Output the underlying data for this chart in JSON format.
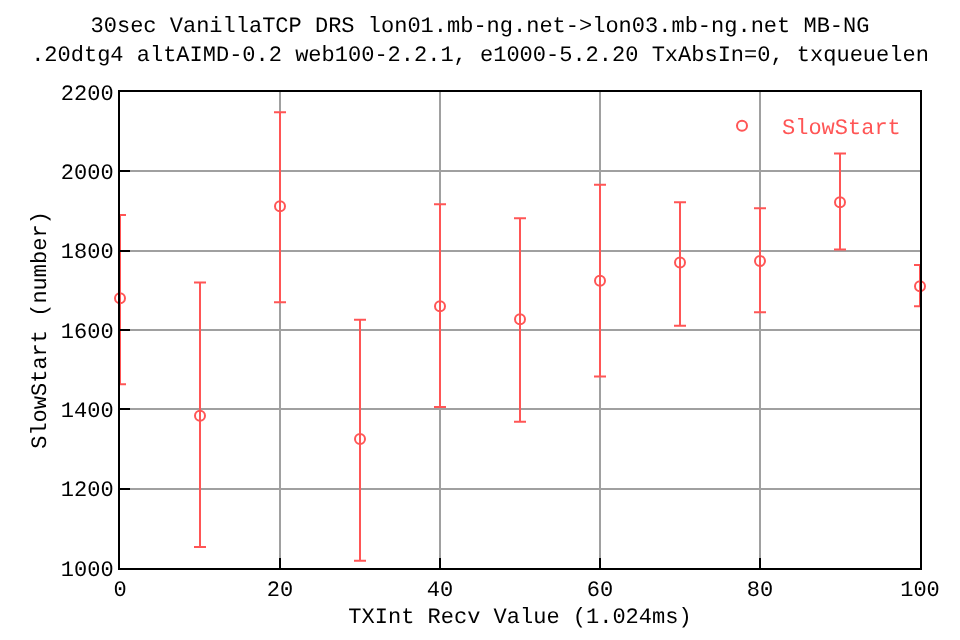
{
  "chart_data": {
    "type": "scatter",
    "title": "30sec VanillaTCP DRS lon01.mb-ng.net->lon03.mb-ng.net MB-NG\n.20dtg4 altAIMD-0.2 web100-2.2.1, e1000-5.2.20 TxAbsIn=0, txqueuelen",
    "xlabel": "TXInt Recv Value (1.024ms)",
    "ylabel": "SlowStart (number)",
    "x": [
      0,
      10,
      20,
      30,
      40,
      50,
      60,
      70,
      80,
      90,
      100
    ],
    "series": [
      {
        "name": "SlowStart",
        "color": "#ff5555",
        "values": [
          1680,
          1384,
          1912,
          1325,
          1660,
          1627,
          1724,
          1770,
          1774,
          1922,
          1710
        ],
        "errors": [
          [
            1463,
            1890
          ],
          [
            1053,
            1720
          ],
          [
            1670,
            2149
          ],
          [
            1018,
            1626
          ],
          [
            1406,
            1917
          ],
          [
            1369,
            1882
          ],
          [
            1483,
            1966
          ],
          [
            1611,
            1922
          ],
          [
            1645,
            1907
          ],
          [
            1803,
            2045
          ],
          [
            1660,
            1764
          ]
        ]
      }
    ],
    "xlim": [
      0,
      100
    ],
    "xticks": [
      0,
      20,
      40,
      60,
      80,
      100
    ],
    "ylim": [
      1000,
      2200
    ],
    "yticks": [
      1000,
      1200,
      1400,
      1600,
      1800,
      2000,
      2200
    ],
    "grid": true,
    "legend": "top right",
    "marker": "circle"
  }
}
